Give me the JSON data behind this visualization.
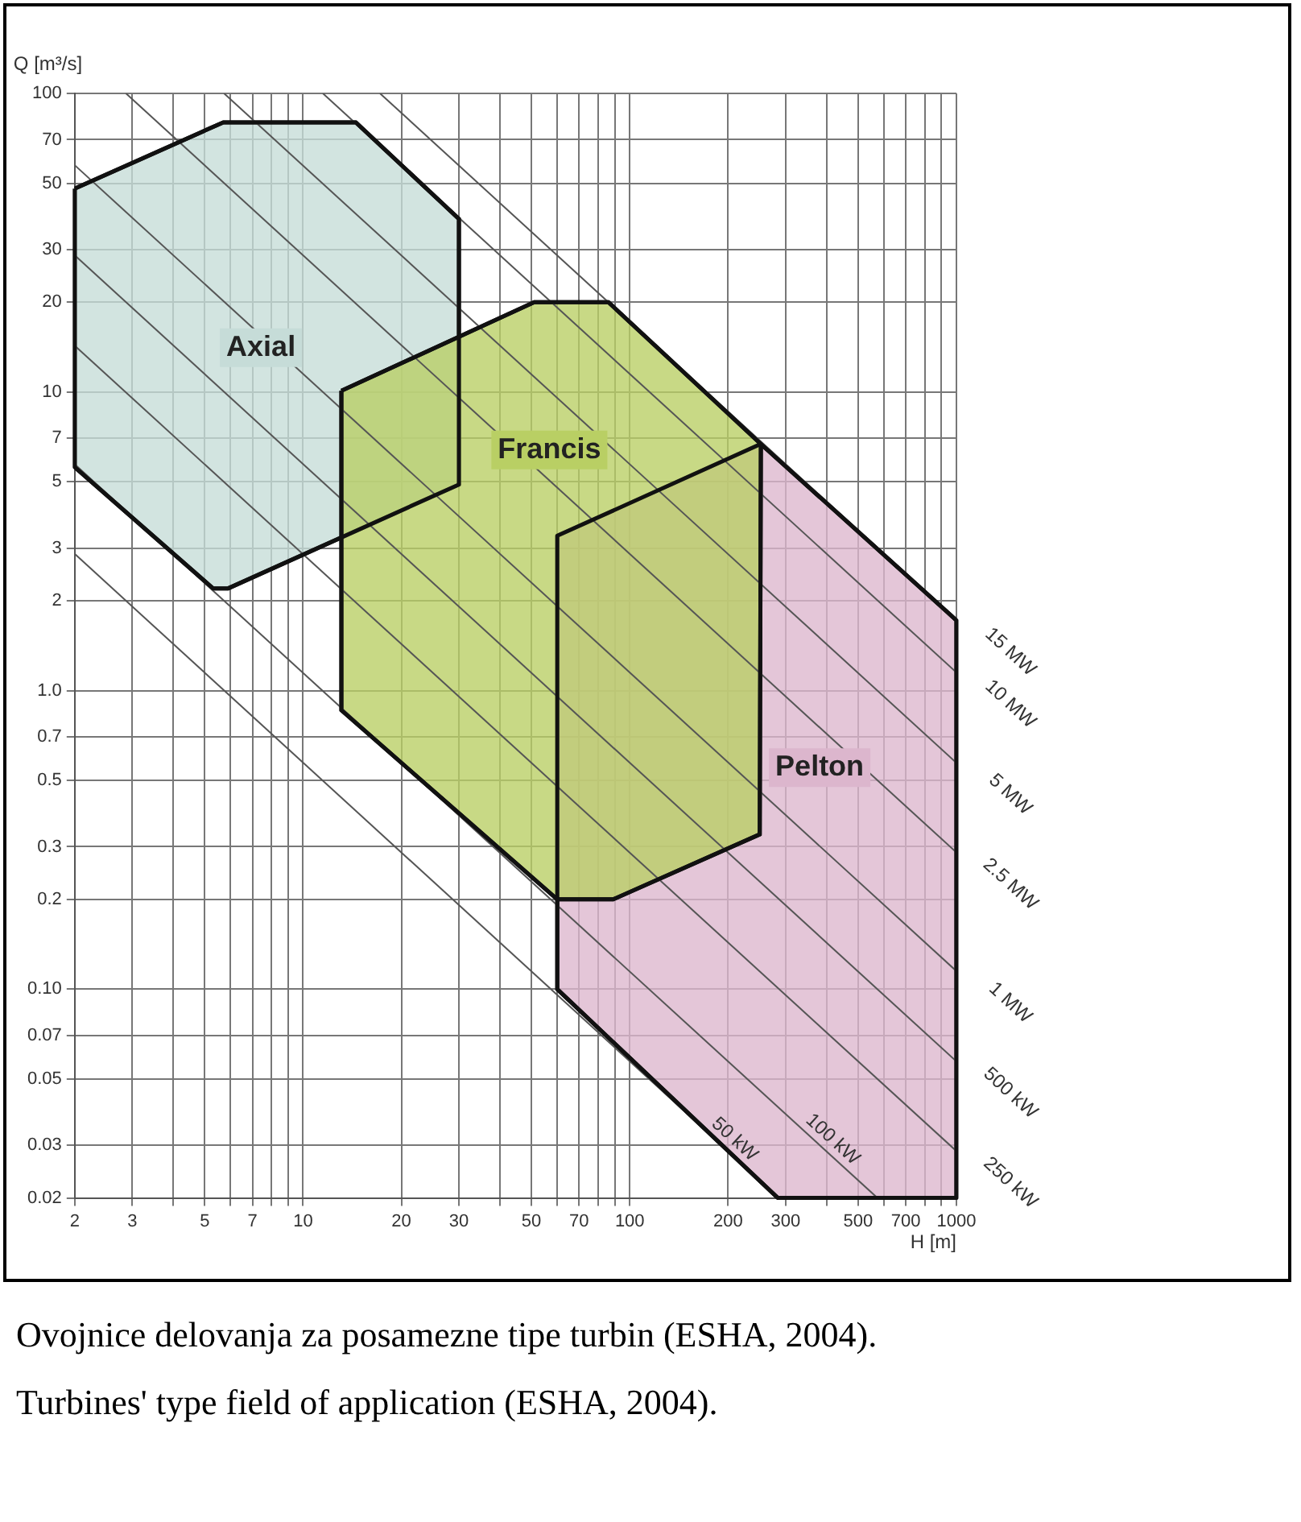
{
  "chart_data": {
    "type": "line",
    "xlabel": "H [m]",
    "ylabel": "Q [m³/s]",
    "log": "xy",
    "grid": true,
    "legend": false,
    "marker": "none",
    "xlim": [
      2,
      1000
    ],
    "ylim": [
      0.02,
      100
    ],
    "xticks": [
      2,
      3,
      {
        "value": 4,
        "label": null
      },
      5,
      {
        "value": 6,
        "label": null
      },
      7,
      {
        "value": 8,
        "label": null
      },
      {
        "value": 9,
        "label": null
      },
      10,
      20,
      30,
      {
        "value": 40,
        "label": null
      },
      50,
      {
        "value": 60,
        "label": null
      },
      70,
      {
        "value": 80,
        "label": null
      },
      {
        "value": 90,
        "label": null
      },
      100,
      200,
      300,
      {
        "value": 400,
        "label": null
      },
      500,
      {
        "value": 600,
        "label": null
      },
      700,
      {
        "value": 800,
        "label": null
      },
      {
        "value": 900,
        "label": null
      },
      1000
    ],
    "yticks": [
      0.02,
      0.03,
      0.05,
      0.07,
      {
        "value": 0.1,
        "label": "0.10"
      },
      0.2,
      0.3,
      0.5,
      0.7,
      {
        "value": 1,
        "label": "1.0"
      },
      2,
      3,
      5,
      7,
      10,
      20,
      30,
      50,
      70,
      100
    ],
    "series": [
      {
        "name": "Pelton",
        "type": "area",
        "color": "#dcb6cd",
        "x": [
          252,
          1000,
          1000,
          284,
          60,
          60
        ],
        "values": [
          6.7,
          1.72,
          0.02,
          0.02,
          0.1,
          3.3
        ]
      },
      {
        "name": "Axial",
        "type": "area",
        "color": "#c6dcd8",
        "x": [
          2,
          5.7,
          14.5,
          30,
          30,
          5.9,
          5.3,
          2
        ],
        "values": [
          48,
          80,
          80,
          38,
          4.9,
          2.2,
          2.2,
          5.6
        ]
      },
      {
        "name": "Francis",
        "type": "area",
        "color": "#b9cf64",
        "x": [
          13.1,
          51,
          86,
          252,
          250,
          89,
          60,
          13.1
        ],
        "values": [
          10.1,
          20,
          20,
          6.7,
          0.33,
          0.2,
          0.2,
          0.86
        ]
      },
      {
        "name": "15 MW",
        "type": "line",
        "color": "#555555",
        "x": [
          17.2,
          1000
        ],
        "values": [
          100,
          1.72
        ]
      },
      {
        "name": "10 MW",
        "type": "line",
        "color": "#555555",
        "x": [
          11.5,
          1000
        ],
        "values": [
          100,
          1.15
        ]
      },
      {
        "name": "5 MW",
        "type": "line",
        "color": "#555555",
        "x": [
          5.73,
          1000
        ],
        "values": [
          100,
          0.573
        ]
      },
      {
        "name": "2.5 MW",
        "type": "line",
        "color": "#555555",
        "x": [
          2.87,
          1000
        ],
        "values": [
          100,
          0.287
        ]
      },
      {
        "name": "1 MW",
        "type": "line",
        "color": "#555555",
        "x": [
          2,
          1000
        ],
        "values": [
          57.5,
          0.115
        ]
      },
      {
        "name": "500 kW",
        "type": "line",
        "color": "#555555",
        "x": [
          2,
          1000
        ],
        "values": [
          28.7,
          0.0573
        ]
      },
      {
        "name": "250 kW",
        "type": "line",
        "color": "#555555",
        "x": [
          2,
          1000
        ],
        "values": [
          14.3,
          0.0287
        ]
      },
      {
        "name": "100 kW",
        "type": "line",
        "color": "#555555",
        "x": [
          2,
          573
        ],
        "values": [
          5.73,
          0.02
        ]
      },
      {
        "name": "50 kW",
        "type": "line",
        "color": "#555555",
        "x": [
          2,
          287
        ],
        "values": [
          2.87,
          0.02
        ]
      }
    ],
    "annotations": [
      "Ovojnice delovanja za posamezne tipe turbin (ESHA, 2004).",
      "Turbines' type field of application (ESHA, 2004)."
    ]
  }
}
